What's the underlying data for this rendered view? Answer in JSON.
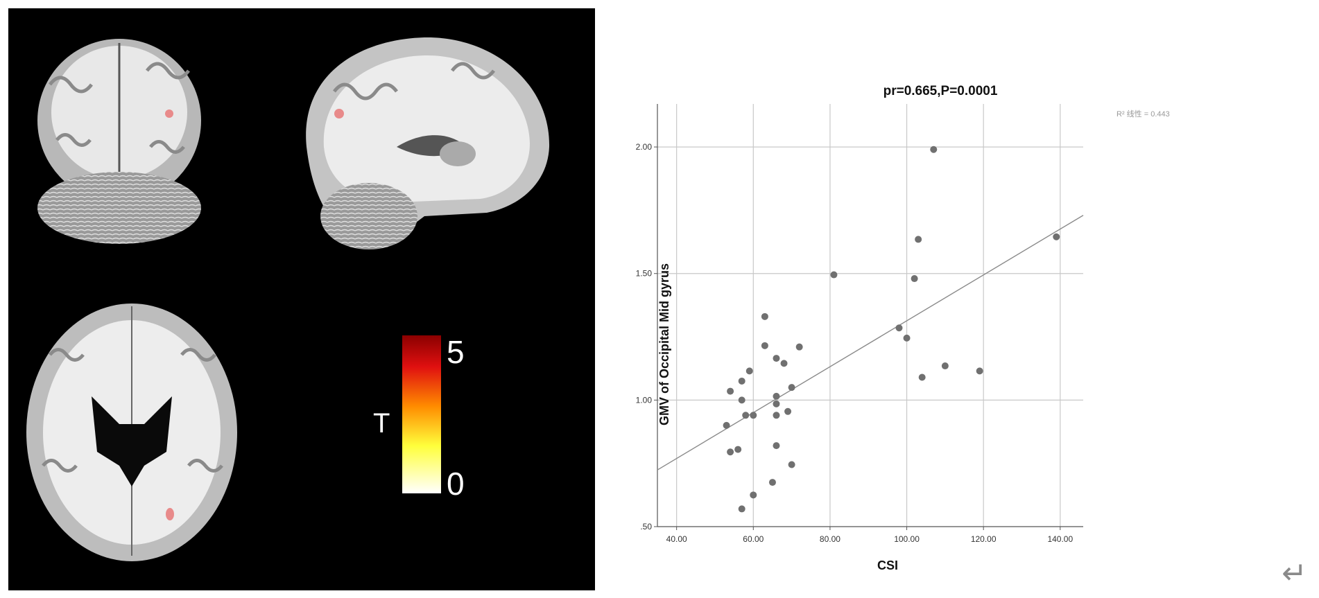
{
  "figure": {
    "colorbar": {
      "label": "T",
      "max_label": "5",
      "min_label": "0",
      "colors": [
        "#ffffff",
        "#ffff3c",
        "#ff8c00",
        "#e01010",
        "#8b0000"
      ]
    }
  },
  "chart_data": {
    "type": "scatter",
    "title": "pr=0.665,P=0.0001",
    "xlabel": "CSI",
    "ylabel": "GMV of Occipital Mid gyrus",
    "xlim": [
      35,
      146
    ],
    "ylim": [
      0.5,
      2.17
    ],
    "x_ticks": [
      40,
      60,
      80,
      100,
      120,
      140
    ],
    "x_tick_labels": [
      "40.00",
      "60.00",
      "80.00",
      "100.00",
      "120.00",
      "140.00"
    ],
    "y_ticks": [
      0.5,
      1.0,
      1.5,
      2.0
    ],
    "y_tick_labels": [
      ".50",
      "1.00",
      "1.50",
      "2.00"
    ],
    "grid": true,
    "fit_label": "R² 线性 = 0.443",
    "fit_line": {
      "x0": 35,
      "y0": 0.724,
      "x1": 146,
      "y1": 1.73
    },
    "point_color": "#707070",
    "points": [
      {
        "x": 53,
        "y": 0.9
      },
      {
        "x": 54,
        "y": 1.035
      },
      {
        "x": 54,
        "y": 0.795
      },
      {
        "x": 56,
        "y": 0.805
      },
      {
        "x": 57,
        "y": 1.075
      },
      {
        "x": 57,
        "y": 1.0
      },
      {
        "x": 57,
        "y": 0.57
      },
      {
        "x": 58,
        "y": 0.94
      },
      {
        "x": 59,
        "y": 1.115
      },
      {
        "x": 60,
        "y": 0.94
      },
      {
        "x": 60,
        "y": 0.625
      },
      {
        "x": 63,
        "y": 1.33
      },
      {
        "x": 63,
        "y": 1.215
      },
      {
        "x": 65,
        "y": 0.675
      },
      {
        "x": 66,
        "y": 1.165
      },
      {
        "x": 66,
        "y": 1.015
      },
      {
        "x": 66,
        "y": 0.985
      },
      {
        "x": 66,
        "y": 0.94
      },
      {
        "x": 66,
        "y": 0.82
      },
      {
        "x": 68,
        "y": 1.145
      },
      {
        "x": 69,
        "y": 0.955
      },
      {
        "x": 70,
        "y": 1.05
      },
      {
        "x": 70,
        "y": 0.745
      },
      {
        "x": 72,
        "y": 1.21
      },
      {
        "x": 81,
        "y": 1.495
      },
      {
        "x": 98,
        "y": 1.285
      },
      {
        "x": 100,
        "y": 1.245
      },
      {
        "x": 102,
        "y": 1.48
      },
      {
        "x": 103,
        "y": 1.635
      },
      {
        "x": 104,
        "y": 1.09
      },
      {
        "x": 107,
        "y": 1.99
      },
      {
        "x": 110,
        "y": 1.135
      },
      {
        "x": 119,
        "y": 1.115
      },
      {
        "x": 139,
        "y": 1.645
      }
    ]
  }
}
